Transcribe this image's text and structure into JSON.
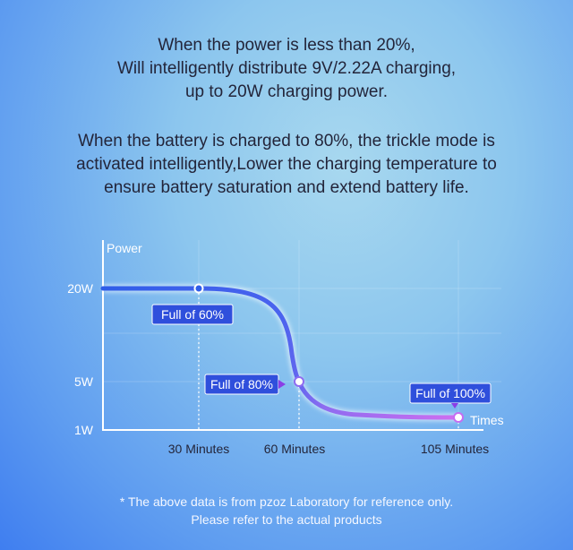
{
  "header": {
    "lines1": [
      "When the power is less than 20%,",
      "Will intelligently distribute 9V/2.22A charging,",
      "up to 20W charging power."
    ],
    "lines2": [
      "When the battery is charged to 80%, the trickle mode is",
      "activated intelligently,Lower the charging temperature to",
      "ensure battery saturation and extend battery life."
    ]
  },
  "chart_data": {
    "type": "line",
    "ylabel": "Power",
    "xlabel": "Times",
    "y_ticks": [
      "20W",
      "5W",
      "1W"
    ],
    "x_ticks": [
      "30 Minutes",
      "60 Minutes",
      "105 Minutes"
    ],
    "points": [
      {
        "x": 30,
        "y": 20,
        "label": "Full of 60%"
      },
      {
        "x": 60,
        "y": 5,
        "label": "Full of 80%"
      },
      {
        "x": 105,
        "y": 1,
        "label": "Full of 100%"
      }
    ],
    "colors": {
      "line_start": "#2f5de8",
      "line_end": "#c56cf2",
      "badge_blue": "#2f4fdc",
      "badge_purple": "#8a3ee6"
    }
  },
  "footer": {
    "line1": "* The above data is from pzoz Laboratory for reference only.",
    "line2": "Please refer to the actual products"
  }
}
